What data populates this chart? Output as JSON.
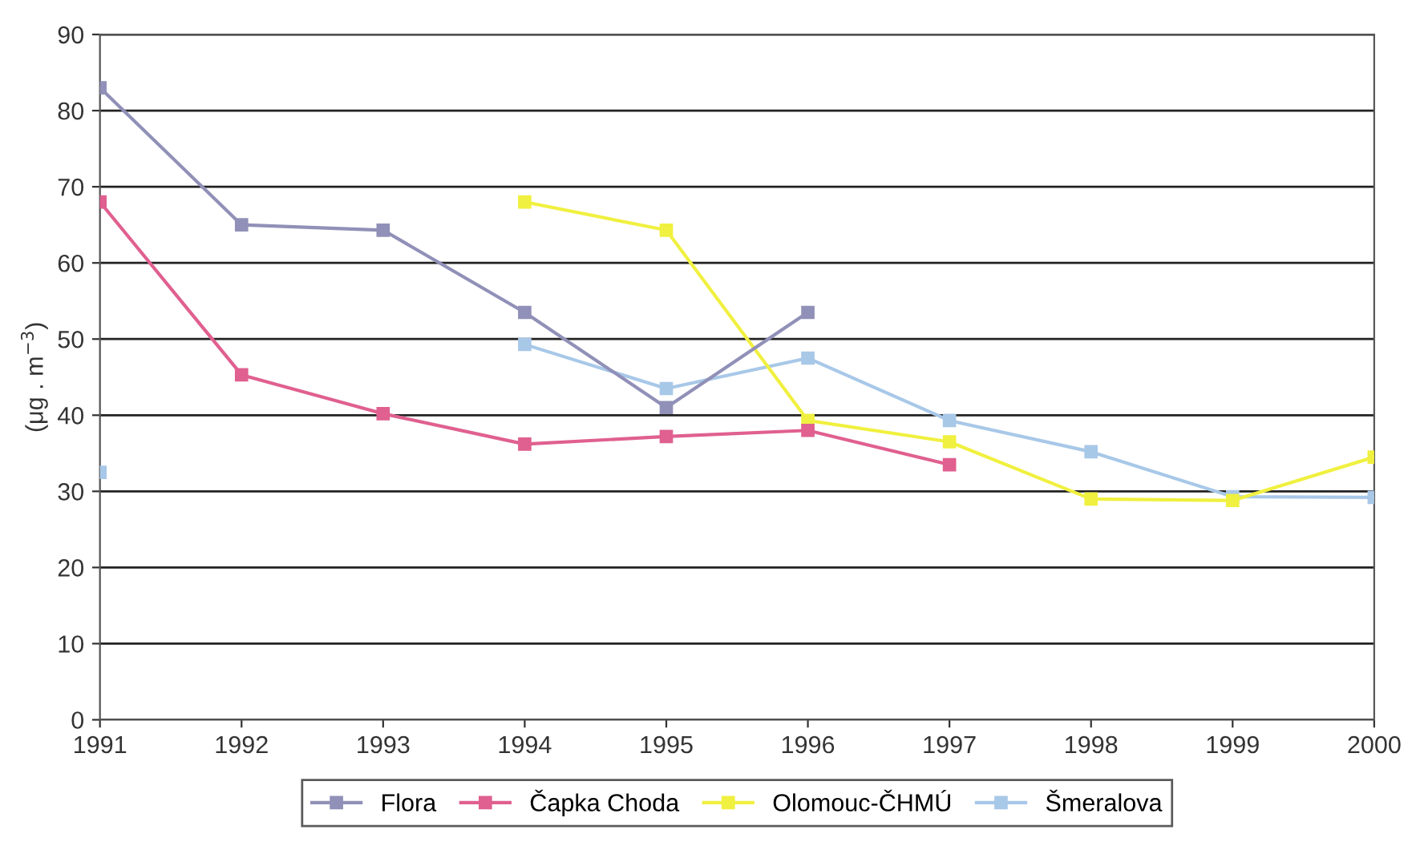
{
  "chart_data": {
    "type": "line",
    "ylabel": "(μg . m$^{−3}$)",
    "x": [
      1991,
      1992,
      1993,
      1994,
      1995,
      1996,
      1997,
      1998,
      1999,
      2000
    ],
    "series": [
      {
        "name": "Flora",
        "color": "#9090b8",
        "values": [
          83,
          65,
          64.3,
          53.5,
          41,
          53.5,
          null,
          null,
          null,
          null
        ]
      },
      {
        "name": "Čapka Choda",
        "color": "#e06090",
        "values": [
          68,
          45.3,
          40.2,
          36.2,
          37.2,
          38,
          33.5,
          null,
          null,
          null
        ]
      },
      {
        "name": "Olomouc-ČHMÚ",
        "color": "#f0f040",
        "values": [
          null,
          null,
          null,
          68,
          64.3,
          39.3,
          36.5,
          29,
          28.8,
          34.5
        ]
      },
      {
        "name": "Šmeralova",
        "color": "#a8c8e8",
        "values": [
          32.5,
          null,
          null,
          49.3,
          43.5,
          47.5,
          39.3,
          35.2,
          29.3,
          29.2
        ]
      }
    ],
    "xlim": [
      1991,
      2000
    ],
    "xticks": [
      1991,
      1992,
      1993,
      1994,
      1995,
      1996,
      1997,
      1998,
      1999,
      2000
    ],
    "ylim": [
      0,
      90
    ],
    "yticks": [
      0,
      10,
      20,
      30,
      40,
      50,
      60,
      70,
      80,
      90
    ],
    "grid": "y",
    "legend": "bottom",
    "marker": "square",
    "line_style": "solid"
  }
}
